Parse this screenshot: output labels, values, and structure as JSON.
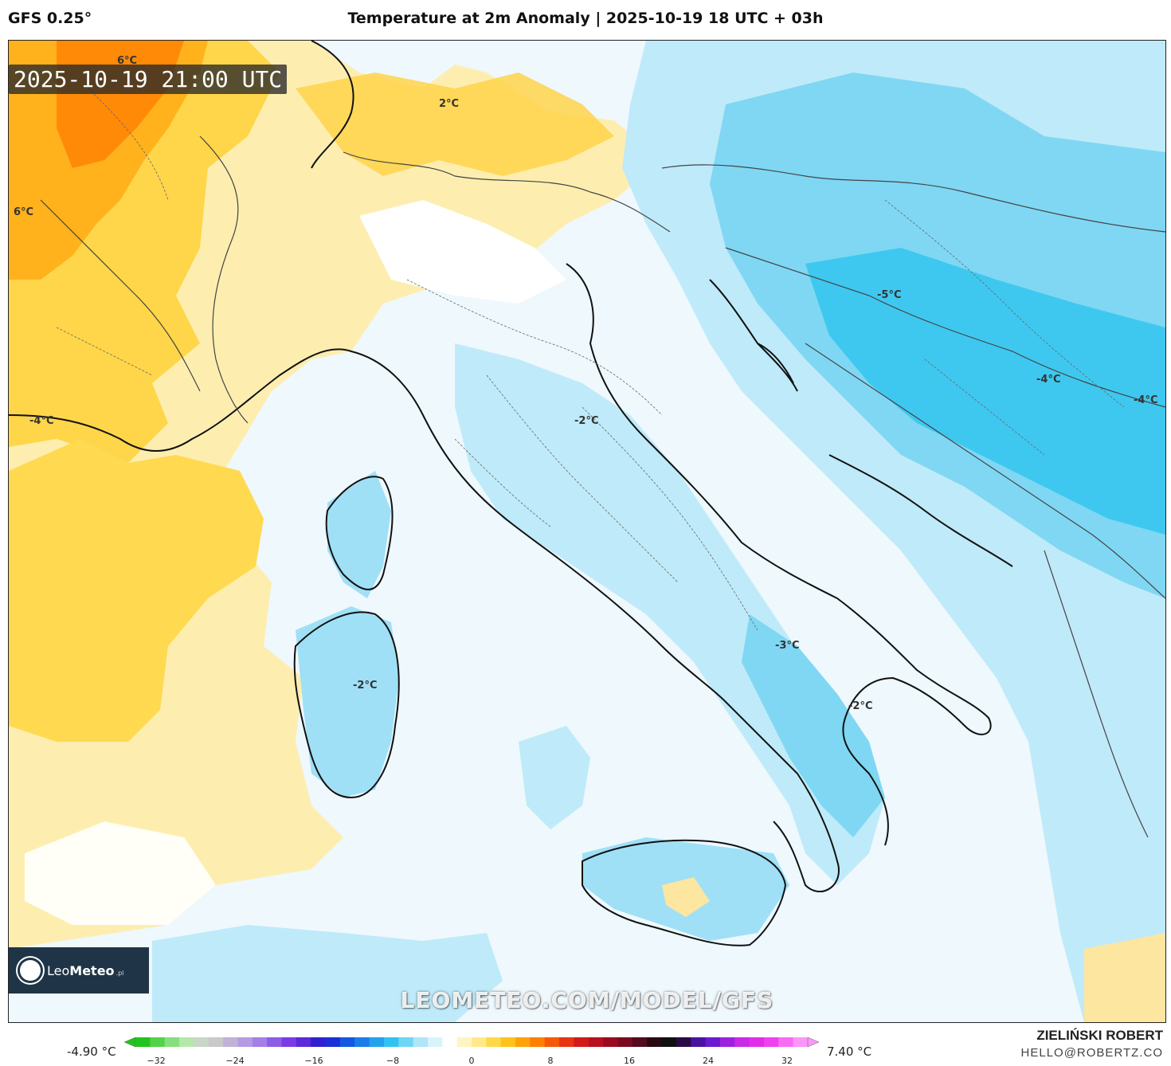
{
  "header": {
    "model": "GFS 0.25°",
    "title": "Temperature at 2m Anomaly | 2025-10-19 18 UTC + 03h"
  },
  "map": {
    "valid_time": "2025-10-19 21:00 UTC",
    "watermark": "LEOMETEO.COM/MODEL/GFS",
    "logo": {
      "name_light": "Leo",
      "name_bold": "Meteo",
      "suffix": ".pl"
    },
    "contour_labels": [
      "6°C",
      "6°C",
      "2°C",
      "-4°C",
      "-2°C",
      "-2°C",
      "-5°C",
      "-4°C",
      "-4°C",
      "-3°C",
      "-2°C"
    ]
  },
  "colorbar": {
    "min_label": "-4.90 °C",
    "max_label": "7.40 °C",
    "ticks": [
      "−32",
      "−24",
      "−16",
      "−8",
      "0",
      "8",
      "16",
      "24",
      "32"
    ],
    "colors": [
      "#22c31e",
      "#54d24a",
      "#86df7c",
      "#b4e8a9",
      "#c9d6c8",
      "#c9c9c9",
      "#c0b2d6",
      "#b59be2",
      "#a37fe6",
      "#8d5de6",
      "#7a3be6",
      "#5b2ad9",
      "#3120d2",
      "#1a2fd8",
      "#1458e2",
      "#1a7de8",
      "#23a2ee",
      "#32c2f2",
      "#6ed6f5",
      "#aee6f8",
      "#d9f3fb",
      "#ffffff",
      "#fff5c2",
      "#ffe98a",
      "#ffd84a",
      "#ffc21a",
      "#ffa20a",
      "#ff7f00",
      "#f5580a",
      "#e63414",
      "#d11a1a",
      "#b8101e",
      "#9a0b1f",
      "#7a0a22",
      "#520a1c",
      "#2a0812",
      "#101010",
      "#2a0a44",
      "#4a12a0",
      "#6a1ad0",
      "#9d22e0",
      "#c82ae6",
      "#e22ee8",
      "#f041ef",
      "#f86bf5",
      "#fc95f9"
    ]
  },
  "author": {
    "name": "ZIELIŃSKI ROBERT",
    "email": "HELLO@ROBERTZ.CO"
  }
}
